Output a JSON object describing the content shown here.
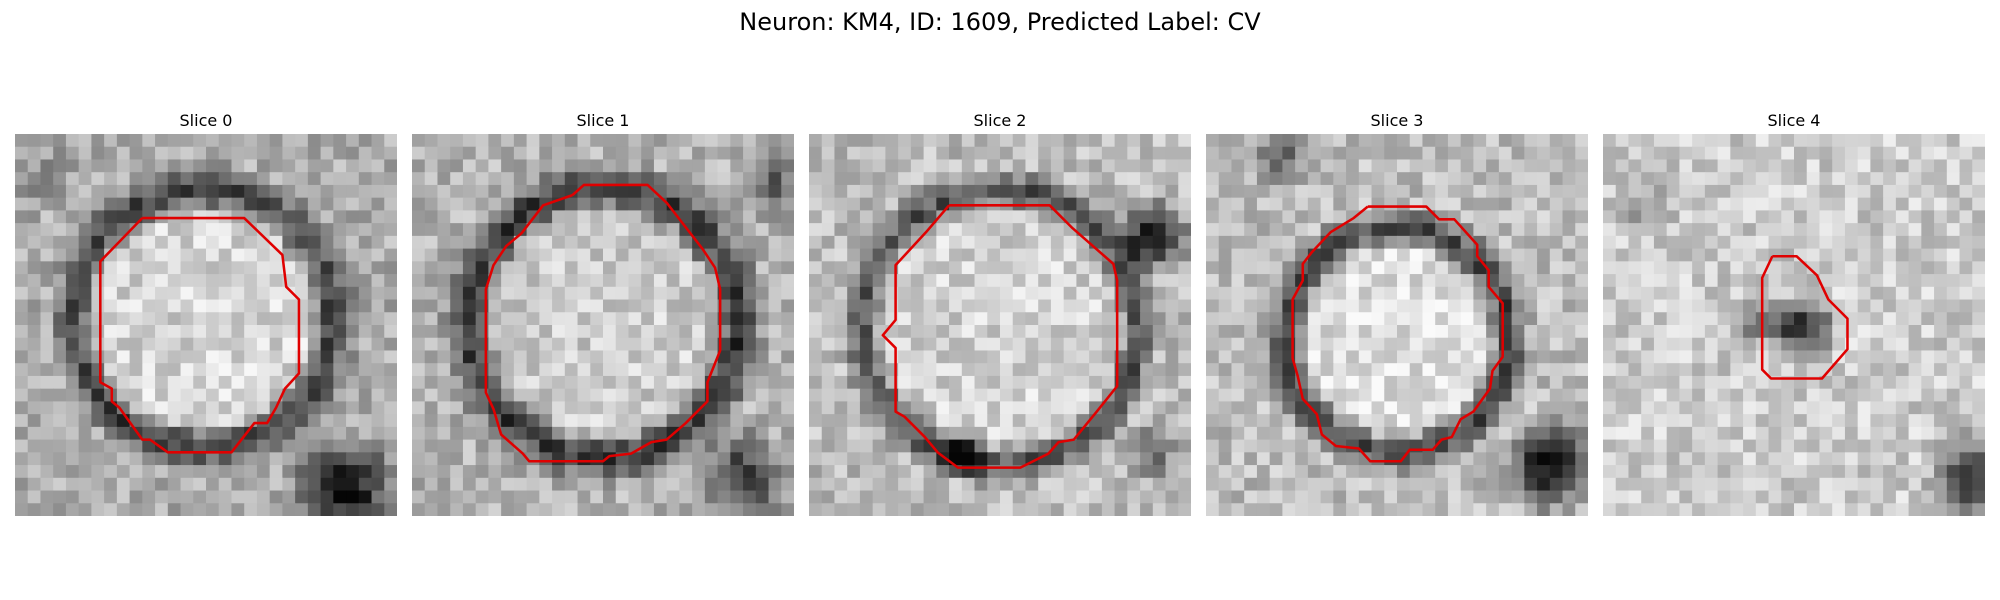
{
  "figure": {
    "title": "Neuron: KM4, ID: 1609, Predicted Label: CV"
  },
  "panels": [
    {
      "title": "Slice 0",
      "outline_color": "#e00000"
    },
    {
      "title": "Slice 1",
      "outline_color": "#e00000"
    },
    {
      "title": "Slice 2",
      "outline_color": "#e00000"
    },
    {
      "title": "Slice 3",
      "outline_color": "#e00000"
    },
    {
      "title": "Slice 4",
      "outline_color": "#e00000"
    }
  ]
}
